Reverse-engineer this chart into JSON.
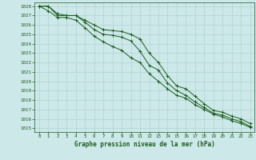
{
  "hours": [
    0,
    1,
    2,
    3,
    4,
    5,
    6,
    7,
    8,
    9,
    10,
    11,
    12,
    13,
    14,
    15,
    16,
    17,
    18,
    19,
    20,
    21,
    22,
    23
  ],
  "line_upper": [
    1028.0,
    1028.0,
    1027.2,
    1027.0,
    1027.0,
    1026.5,
    1026.0,
    1025.5,
    1025.4,
    1025.3,
    1025.0,
    1024.5,
    1023.0,
    1022.0,
    1020.6,
    1019.5,
    1019.2,
    1018.4,
    1017.6,
    1016.9,
    1016.7,
    1016.3,
    1016.0,
    1015.5
  ],
  "line_mid": [
    1028.0,
    1028.0,
    1027.0,
    1027.0,
    1027.0,
    1026.3,
    1025.5,
    1025.0,
    1024.9,
    1024.7,
    1024.3,
    1023.2,
    1021.7,
    1021.2,
    1019.8,
    1019.0,
    1018.5,
    1017.8,
    1017.2,
    1016.6,
    1016.4,
    1016.0,
    1015.7,
    1015.2
  ],
  "line_lower": [
    1028.0,
    1027.5,
    1026.8,
    1026.8,
    1026.5,
    1025.7,
    1024.8,
    1024.2,
    1023.7,
    1023.3,
    1022.5,
    1022.0,
    1020.8,
    1020.0,
    1019.2,
    1018.5,
    1018.2,
    1017.5,
    1017.0,
    1016.5,
    1016.2,
    1015.8,
    1015.5,
    1015.1
  ],
  "line_color": "#1a5c1a",
  "bg_color": "#cce8e8",
  "grid_color": "#aacccc",
  "text_color": "#1a5c1a",
  "xlabel": "Graphe pression niveau de la mer (hPa)",
  "ylim_min": 1014.6,
  "ylim_max": 1028.4,
  "yticks": [
    1015,
    1016,
    1017,
    1018,
    1019,
    1020,
    1021,
    1022,
    1023,
    1024,
    1025,
    1026,
    1027,
    1028
  ],
  "xlim_min": -0.5,
  "xlim_max": 23.5,
  "xticks": [
    0,
    1,
    2,
    3,
    4,
    5,
    6,
    7,
    8,
    9,
    10,
    11,
    12,
    13,
    14,
    15,
    16,
    17,
    18,
    19,
    20,
    21,
    22,
    23
  ]
}
